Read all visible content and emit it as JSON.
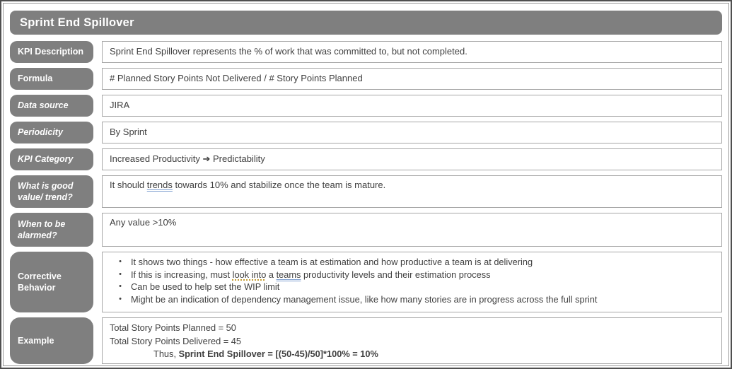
{
  "title": "Sprint End Spillover",
  "bullet_char": "•",
  "rows": {
    "kpi_description": {
      "label": "KPI Description",
      "value": "Sprint End Spillover represents the % of work that was committed to, but not completed."
    },
    "formula": {
      "label": "Formula",
      "value": "# Planned Story Points Not Delivered / # Story Points Planned"
    },
    "data_source": {
      "label": "Data source",
      "value": "JIRA"
    },
    "periodicity": {
      "label": "Periodicity",
      "value": "By Sprint"
    },
    "kpi_category": {
      "label": "KPI Category",
      "value": "Increased Productivity ➔ Predictability"
    },
    "good_value": {
      "label": "What is good value/ trend?",
      "pre": "It should ",
      "flagged": "trends",
      "post": " towards 10% and stabilize once the team is mature."
    },
    "alarmed": {
      "label": "When to be alarmed?",
      "value": "Any value >10%"
    },
    "corrective": {
      "label": "Corrective Behavior",
      "bullet1": "It shows two things - how effective a team is at estimation and how productive a team is at delivering",
      "bullet2_s1": "If this is increasing, must ",
      "bullet2_s2": "look into",
      "bullet2_s3": " a ",
      "bullet2_s4": "teams",
      "bullet2_s5": " productivity levels and their estimation process",
      "bullet3": "Can be used to help set the WIP limit",
      "bullet4": "Might be an indication of dependency management issue, like how many stories are in progress across the full sprint"
    },
    "example": {
      "label": "Example",
      "line1": "Total Story Points Planned = 50",
      "line2": "Total Story Points Delivered = 45",
      "line3_prefix": "Thus, ",
      "line3_bold": "Sprint End Spillover = [(50-45)/50]*100% = 10%"
    }
  },
  "colors": {
    "header_bg": "#7f7f7f",
    "label_bg": "#7f7f7f",
    "frame_outer": "#4f4f4f",
    "frame_inner": "#9b9b9b",
    "value_border": "#a6a6a6",
    "value_text": "#404040",
    "grammar_underline": "#7f9fd0",
    "style_underline": "#c49b2e"
  }
}
